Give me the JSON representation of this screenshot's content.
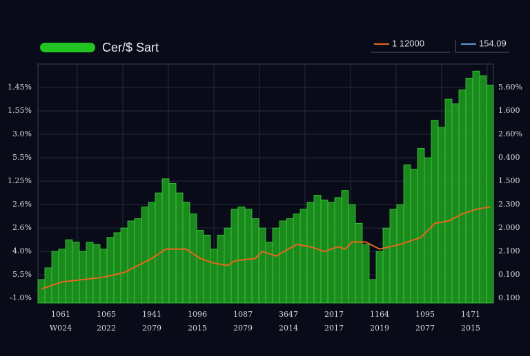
{
  "chart_data": {
    "type": "bar",
    "title": "Cer/$ Sart",
    "title_color": "#22c422",
    "legend": [
      {
        "label": "1  12000",
        "color": "#e8661c"
      },
      {
        "label": "154.09",
        "color": "#5b9bd5"
      }
    ],
    "x_labels": [
      [
        "1061",
        "W024"
      ],
      [
        "1065",
        "2022"
      ],
      [
        "1941",
        "2079"
      ],
      [
        "1096",
        "2015"
      ],
      [
        "1087",
        "2079"
      ],
      [
        "3647",
        "2014"
      ],
      [
        "2017",
        "2017"
      ],
      [
        "1164",
        "2019"
      ],
      [
        "1095",
        "2077"
      ],
      [
        "1471",
        "2015"
      ]
    ],
    "xlim": [
      -0.5,
      65.5
    ],
    "ylim": [
      -0.2,
      10
    ],
    "yticks": [
      {
        "value": 0,
        "label": "-1.0%"
      },
      {
        "value": 1,
        "label": "5.5%"
      },
      {
        "value": 2,
        "label": "4.0%"
      },
      {
        "value": 3,
        "label": "2.6%"
      },
      {
        "value": 4,
        "label": "2.6%"
      },
      {
        "value": 5,
        "label": "1.25%"
      },
      {
        "value": 6,
        "label": "5.5%"
      },
      {
        "value": 7,
        "label": "3.0%"
      },
      {
        "value": 8,
        "label": "1.55%"
      },
      {
        "value": 9,
        "label": "1.45%"
      }
    ],
    "y2lim": [
      -0.2,
      10
    ],
    "y2ticks": [
      {
        "value": 0,
        "label": "0.100"
      },
      {
        "value": 1,
        "label": "0.100"
      },
      {
        "value": 2,
        "label": "2.100"
      },
      {
        "value": 3,
        "label": "2.000"
      },
      {
        "value": 4,
        "label": "2.300"
      },
      {
        "value": 5,
        "label": "1.500"
      },
      {
        "value": 6,
        "label": "0.400"
      },
      {
        "value": 7,
        "label": "2.60%"
      },
      {
        "value": 8,
        "label": "1.600"
      },
      {
        "value": 9,
        "label": "5.60%"
      }
    ],
    "grid": true,
    "series": [
      {
        "type": "bar",
        "color": "#1fa01f",
        "values": [
          0.8,
          1.3,
          2.0,
          2.1,
          2.5,
          2.4,
          2.0,
          2.4,
          2.3,
          2.1,
          2.6,
          2.8,
          3.0,
          3.3,
          3.4,
          3.9,
          4.1,
          4.5,
          5.1,
          4.9,
          4.5,
          4.1,
          3.6,
          2.9,
          2.7,
          2.1,
          2.7,
          3.0,
          3.8,
          3.9,
          3.8,
          3.4,
          3.0,
          2.4,
          3.0,
          3.3,
          3.4,
          3.6,
          3.8,
          4.1,
          4.4,
          4.2,
          4.1,
          4.3,
          4.6,
          4.0,
          3.2,
          2.3,
          0.8,
          2.0,
          3.0,
          3.8,
          4.0,
          5.7,
          5.5,
          6.4,
          6.0,
          7.6,
          7.3,
          8.5,
          8.3,
          8.9,
          9.4,
          9.7,
          9.5,
          9.1
        ]
      },
      {
        "type": "line",
        "color": "#e8661c",
        "x": [
          0,
          3,
          9,
          12,
          16,
          18,
          21,
          23,
          25,
          27,
          28,
          31,
          32,
          34,
          37,
          39,
          41,
          43,
          44,
          45,
          47,
          49,
          52,
          55,
          57,
          59,
          61,
          63,
          65
        ],
        "values": [
          0.4,
          0.7,
          0.9,
          1.1,
          1.7,
          2.1,
          2.1,
          1.7,
          1.5,
          1.4,
          1.6,
          1.7,
          2.0,
          1.8,
          2.3,
          2.2,
          2.0,
          2.2,
          2.1,
          2.4,
          2.4,
          2.1,
          2.3,
          2.6,
          3.2,
          3.3,
          3.6,
          3.8,
          3.9
        ]
      }
    ]
  }
}
